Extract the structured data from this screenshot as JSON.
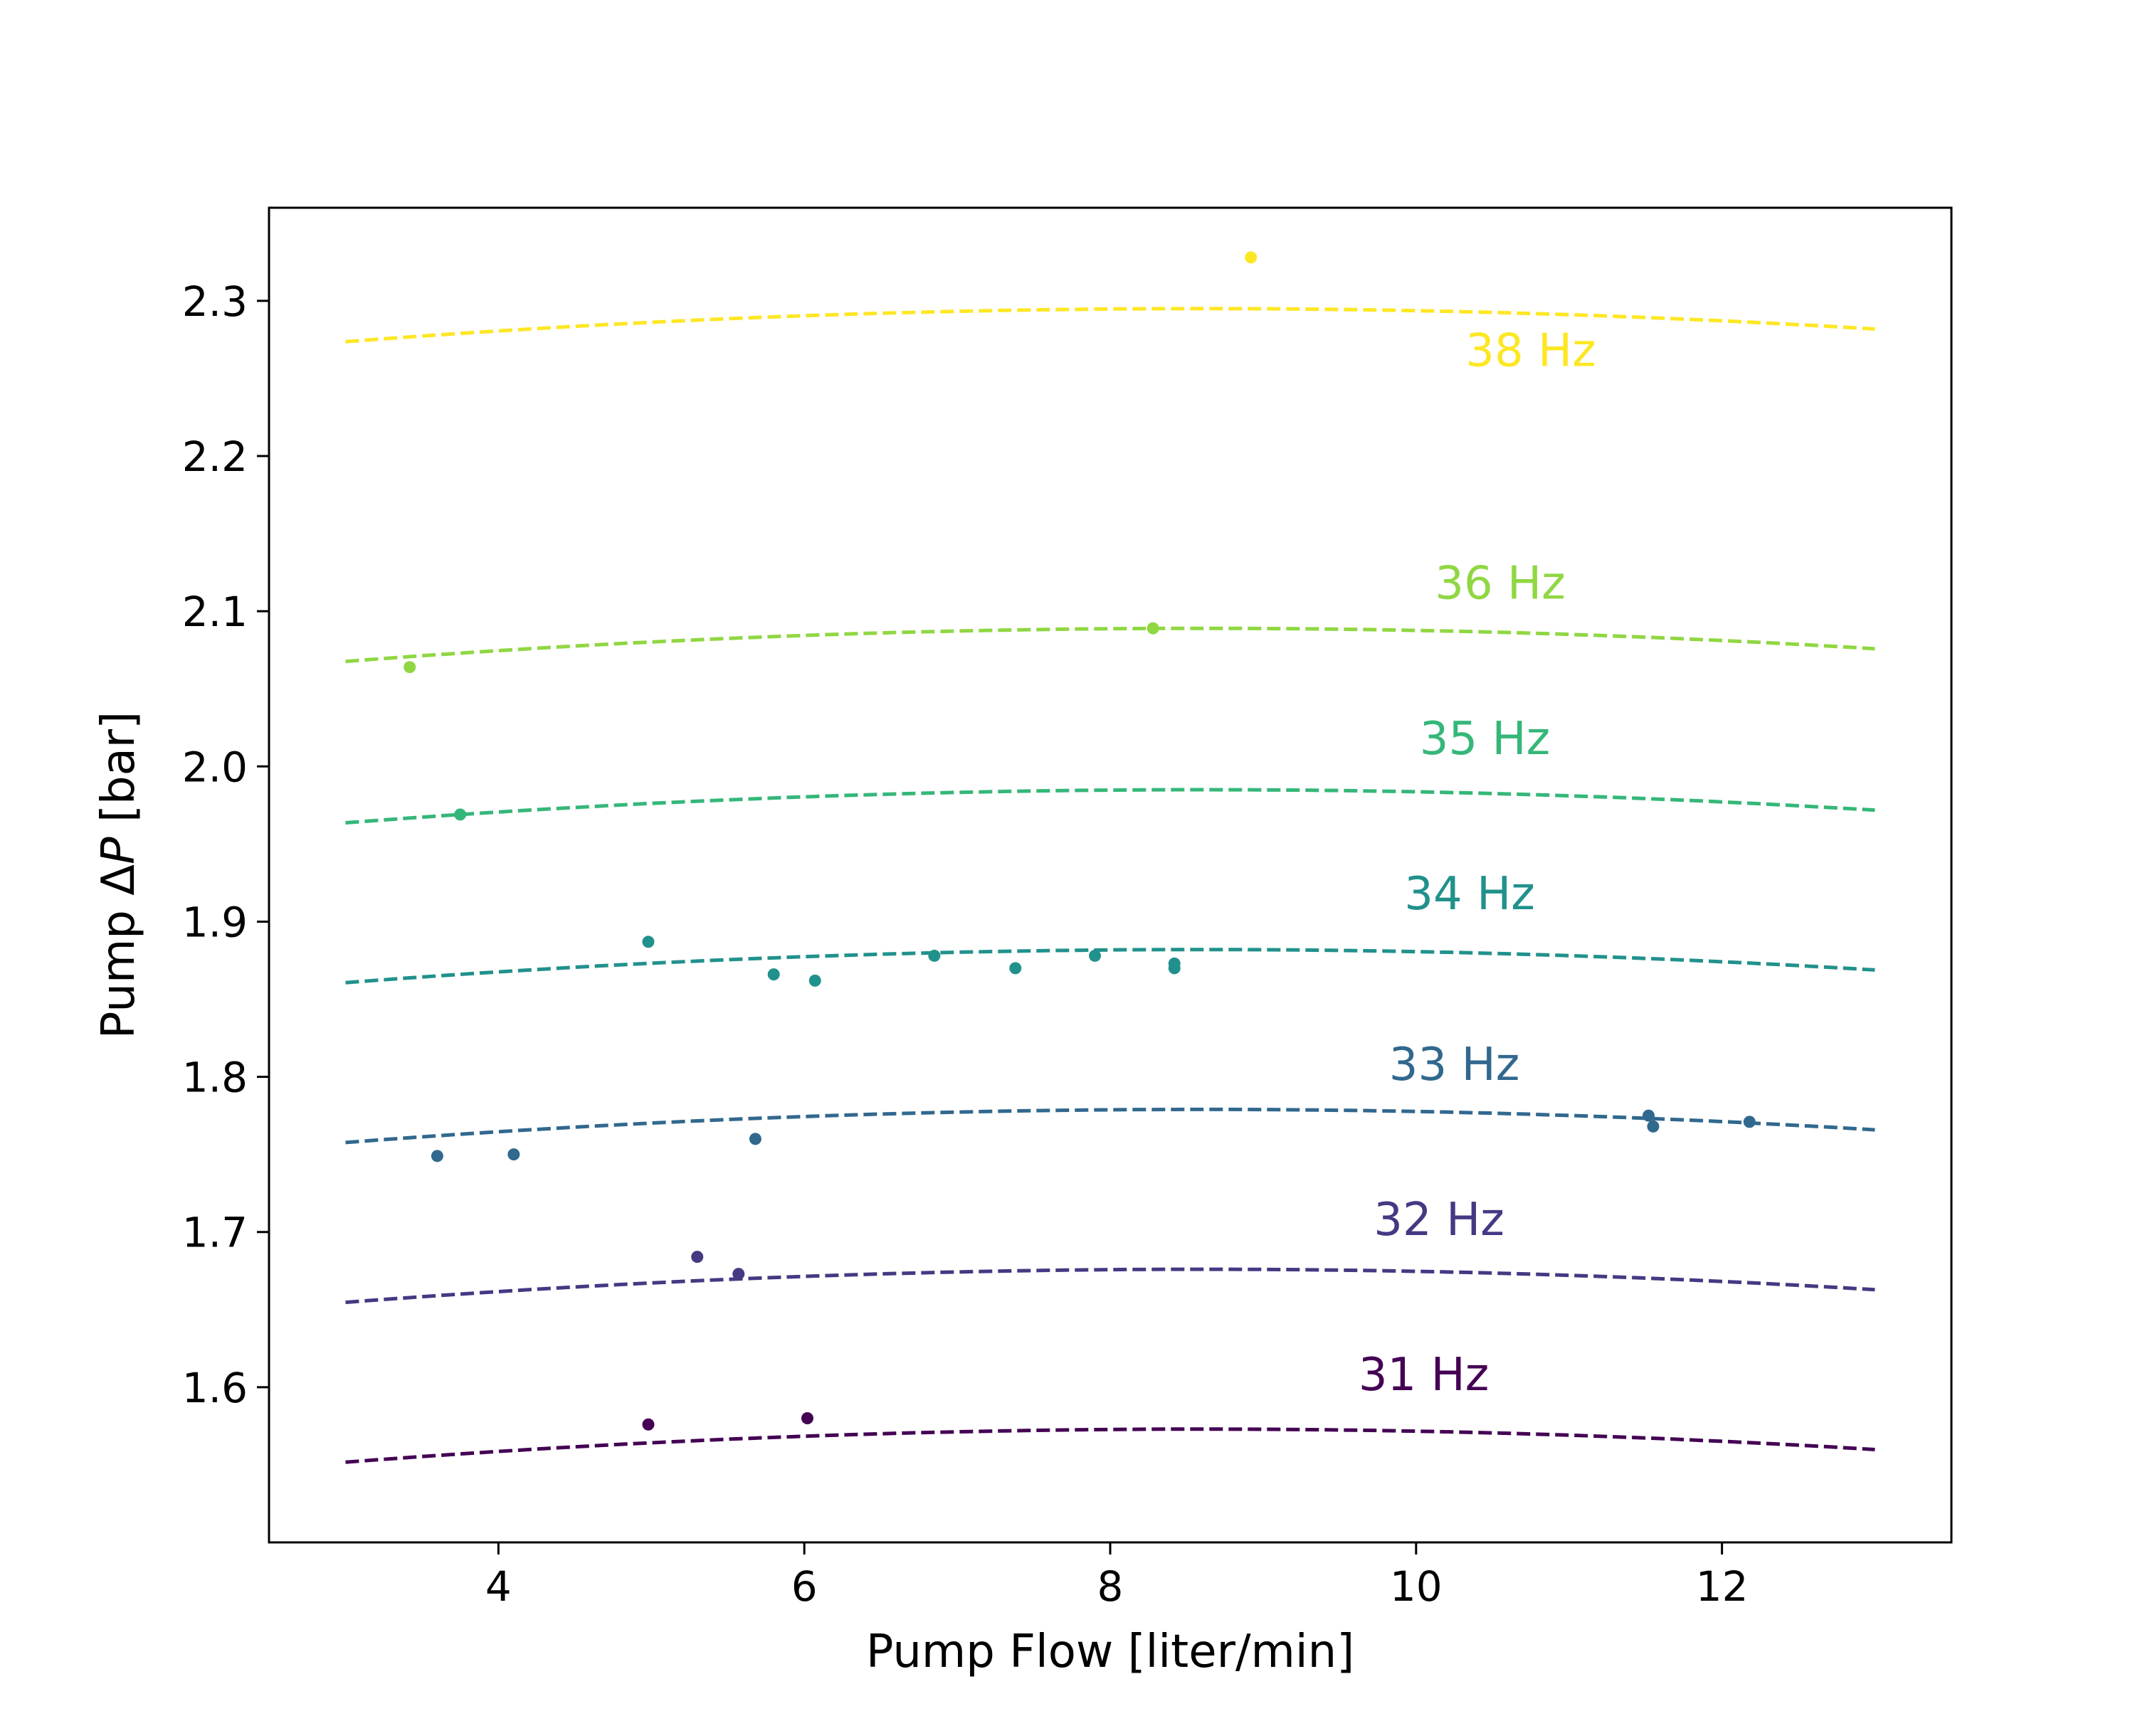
{
  "chart_data": {
    "type": "scatter",
    "xlabel": "Pump Flow [liter/min]",
    "ylabel_prefix": "Pump ",
    "ylabel_delta": "Δ",
    "ylabel_var": "P",
    "ylabel_suffix": " [bar]",
    "xlim": [
      2.5,
      13.5
    ],
    "ylim": [
      1.5,
      2.36
    ],
    "xticks": [
      4,
      6,
      8,
      10,
      12
    ],
    "xtick_labels": [
      "4",
      "6",
      "8",
      "10",
      "12"
    ],
    "yticks": [
      1.6,
      1.7,
      1.8,
      1.9,
      2.0,
      2.1,
      2.2,
      2.3
    ],
    "ytick_labels": [
      "1.6",
      "1.7",
      "1.8",
      "1.9",
      "2.0",
      "2.1",
      "2.2",
      "2.3"
    ],
    "grid": false,
    "legend": "none",
    "series": [
      {
        "label": "31 Hz",
        "color": "#440154",
        "fit": {
          "x_range": [
            3,
            13
          ],
          "peak_x": 8.6,
          "peak_y": 1.573,
          "curvature": -0.00068
        },
        "label_pos": [
          10.05,
          1.598
        ],
        "points": [
          [
            4.98,
            1.576
          ],
          [
            6.02,
            1.58
          ]
        ]
      },
      {
        "label": "32 Hz",
        "color": "#443983",
        "fit": {
          "x_range": [
            3,
            13
          ],
          "peak_x": 8.6,
          "peak_y": 1.676,
          "curvature": -0.00068
        },
        "label_pos": [
          10.15,
          1.698
        ],
        "points": [
          [
            5.3,
            1.684
          ],
          [
            5.57,
            1.673
          ]
        ]
      },
      {
        "label": "33 Hz",
        "color": "#31688e",
        "fit": {
          "x_range": [
            3,
            13
          ],
          "peak_x": 8.6,
          "peak_y": 1.779,
          "curvature": -0.00068
        },
        "label_pos": [
          10.25,
          1.798
        ],
        "points": [
          [
            3.6,
            1.749
          ],
          [
            4.1,
            1.75
          ],
          [
            5.68,
            1.76
          ],
          [
            11.52,
            1.775
          ],
          [
            11.55,
            1.768
          ],
          [
            12.18,
            1.771
          ]
        ]
      },
      {
        "label": "34 Hz",
        "color": "#21918c",
        "fit": {
          "x_range": [
            3,
            13
          ],
          "peak_x": 8.6,
          "peak_y": 1.882,
          "curvature": -0.00068
        },
        "label_pos": [
          10.35,
          1.908
        ],
        "points": [
          [
            4.98,
            1.887
          ],
          [
            5.8,
            1.866
          ],
          [
            6.07,
            1.862
          ],
          [
            6.85,
            1.878
          ],
          [
            7.38,
            1.87
          ],
          [
            7.9,
            1.878
          ],
          [
            8.42,
            1.873
          ],
          [
            8.42,
            1.87
          ]
        ]
      },
      {
        "label": "35 Hz",
        "color": "#35b779",
        "fit": {
          "x_range": [
            3,
            13
          ],
          "peak_x": 8.6,
          "peak_y": 1.985,
          "curvature": -0.00068
        },
        "label_pos": [
          10.45,
          2.008
        ],
        "points": [
          [
            3.75,
            1.969
          ]
        ]
      },
      {
        "label": "36 Hz",
        "color": "#90d743",
        "fit": {
          "x_range": [
            3,
            13
          ],
          "peak_x": 8.6,
          "peak_y": 2.089,
          "curvature": -0.00068
        },
        "label_pos": [
          10.55,
          2.108
        ],
        "points": [
          [
            3.42,
            2.064
          ],
          [
            8.28,
            2.089
          ]
        ]
      },
      {
        "label": "38 Hz",
        "color": "#fde725",
        "fit": {
          "x_range": [
            3,
            13
          ],
          "peak_x": 8.6,
          "peak_y": 2.295,
          "curvature": -0.00068
        },
        "label_pos": [
          10.75,
          2.258
        ],
        "points": [
          [
            8.92,
            2.328
          ]
        ]
      }
    ]
  }
}
